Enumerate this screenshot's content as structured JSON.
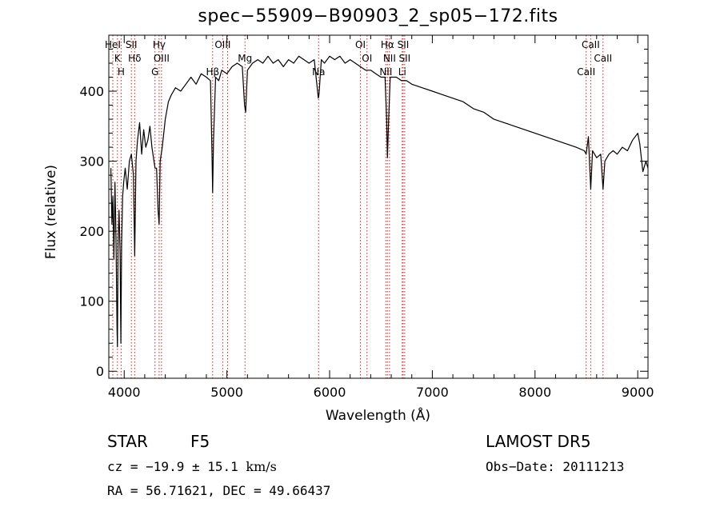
{
  "title": "spec−55909−B90903_2_sp05−172.fits",
  "info": {
    "class_label": "STAR",
    "subclass": "F5",
    "survey": "LAMOST  DR5",
    "cz_prefix": "cz = −19.9 ± 15.1 ",
    "cz_unit": "km/s",
    "obs_date": "Obs−Date: 20111213",
    "radec": "RA =  56.71621, DEC =  49.66437"
  },
  "chart_data": {
    "type": "line",
    "title": "spec−55909−B90903_2_sp05−172.fits",
    "xlabel": "Wavelength (Å)",
    "ylabel": "Flux (relative)",
    "xlim": [
      3850,
      9100
    ],
    "ylim": [
      -10,
      480
    ],
    "xticks": [
      4000,
      5000,
      6000,
      7000,
      8000,
      9000
    ],
    "yticks": [
      0,
      100,
      200,
      300,
      400
    ],
    "line_color": "#000000",
    "marker_color": "#cc2222",
    "series": [
      {
        "points": [
          [
            3870,
            290
          ],
          [
            3880,
            210
          ],
          [
            3890,
            250
          ],
          [
            3900,
            160
          ],
          [
            3910,
            270
          ],
          [
            3920,
            190
          ],
          [
            3930,
            60
          ],
          [
            3934,
            35
          ],
          [
            3940,
            180
          ],
          [
            3950,
            230
          ],
          [
            3960,
            170
          ],
          [
            3968,
            40
          ],
          [
            3975,
            180
          ],
          [
            3985,
            250
          ],
          [
            3995,
            270
          ],
          [
            4010,
            290
          ],
          [
            4030,
            260
          ],
          [
            4050,
            300
          ],
          [
            4070,
            310
          ],
          [
            4090,
            280
          ],
          [
            4102,
            165
          ],
          [
            4115,
            300
          ],
          [
            4130,
            330
          ],
          [
            4150,
            355
          ],
          [
            4170,
            310
          ],
          [
            4190,
            345
          ],
          [
            4210,
            320
          ],
          [
            4230,
            330
          ],
          [
            4250,
            350
          ],
          [
            4270,
            320
          ],
          [
            4290,
            300
          ],
          [
            4300,
            290
          ],
          [
            4315,
            290
          ],
          [
            4330,
            230
          ],
          [
            4340,
            210
          ],
          [
            4350,
            300
          ],
          [
            4370,
            320
          ],
          [
            4400,
            360
          ],
          [
            4430,
            385
          ],
          [
            4460,
            395
          ],
          [
            4500,
            405
          ],
          [
            4550,
            400
          ],
          [
            4600,
            410
          ],
          [
            4650,
            420
          ],
          [
            4700,
            410
          ],
          [
            4750,
            425
          ],
          [
            4800,
            420
          ],
          [
            4840,
            415
          ],
          [
            4855,
            310
          ],
          [
            4861,
            255
          ],
          [
            4870,
            330
          ],
          [
            4890,
            420
          ],
          [
            4920,
            415
          ],
          [
            4950,
            430
          ],
          [
            5000,
            425
          ],
          [
            5050,
            435
          ],
          [
            5100,
            440
          ],
          [
            5150,
            435
          ],
          [
            5172,
            380
          ],
          [
            5183,
            370
          ],
          [
            5200,
            430
          ],
          [
            5250,
            440
          ],
          [
            5300,
            445
          ],
          [
            5350,
            440
          ],
          [
            5400,
            450
          ],
          [
            5450,
            440
          ],
          [
            5500,
            445
          ],
          [
            5550,
            435
          ],
          [
            5600,
            445
          ],
          [
            5650,
            440
          ],
          [
            5700,
            450
          ],
          [
            5750,
            445
          ],
          [
            5800,
            440
          ],
          [
            5850,
            445
          ],
          [
            5890,
            390
          ],
          [
            5896,
            395
          ],
          [
            5920,
            445
          ],
          [
            5950,
            440
          ],
          [
            6000,
            450
          ],
          [
            6050,
            445
          ],
          [
            6100,
            450
          ],
          [
            6150,
            440
          ],
          [
            6200,
            445
          ],
          [
            6250,
            440
          ],
          [
            6300,
            435
          ],
          [
            6350,
            430
          ],
          [
            6400,
            430
          ],
          [
            6450,
            425
          ],
          [
            6500,
            420
          ],
          [
            6540,
            420
          ],
          [
            6555,
            360
          ],
          [
            6563,
            305
          ],
          [
            6575,
            360
          ],
          [
            6590,
            420
          ],
          [
            6650,
            420
          ],
          [
            6700,
            415
          ],
          [
            6750,
            415
          ],
          [
            6800,
            410
          ],
          [
            6900,
            405
          ],
          [
            7000,
            400
          ],
          [
            7100,
            395
          ],
          [
            7200,
            390
          ],
          [
            7300,
            385
          ],
          [
            7400,
            375
          ],
          [
            7500,
            370
          ],
          [
            7600,
            360
          ],
          [
            7700,
            355
          ],
          [
            7800,
            350
          ],
          [
            7900,
            345
          ],
          [
            8000,
            340
          ],
          [
            8100,
            335
          ],
          [
            8200,
            330
          ],
          [
            8300,
            325
          ],
          [
            8400,
            320
          ],
          [
            8480,
            315
          ],
          [
            8498,
            310
          ],
          [
            8520,
            335
          ],
          [
            8542,
            260
          ],
          [
            8560,
            315
          ],
          [
            8600,
            305
          ],
          [
            8640,
            310
          ],
          [
            8662,
            260
          ],
          [
            8680,
            300
          ],
          [
            8720,
            310
          ],
          [
            8760,
            315
          ],
          [
            8800,
            310
          ],
          [
            8850,
            320
          ],
          [
            8900,
            315
          ],
          [
            8950,
            330
          ],
          [
            9000,
            340
          ],
          [
            9020,
            325
          ],
          [
            9050,
            285
          ],
          [
            9080,
            300
          ],
          [
            9100,
            290
          ]
        ]
      }
    ],
    "line_markers": [
      {
        "wavelength": 3889,
        "labels": [
          "HeI"
        ]
      },
      {
        "wavelength": 3934,
        "labels": [
          "K"
        ]
      },
      {
        "wavelength": 3970,
        "labels": [
          "H"
        ]
      },
      {
        "wavelength": 4070,
        "labels": [
          "SII"
        ]
      },
      {
        "wavelength": 4102,
        "labels": [
          "Hδ"
        ]
      },
      {
        "wavelength": 4300,
        "labels": [
          "G"
        ]
      },
      {
        "wavelength": 4340,
        "labels": [
          "Hγ"
        ]
      },
      {
        "wavelength": 4363,
        "labels": [
          "OIII"
        ]
      },
      {
        "wavelength": 4861,
        "labels": [
          "Hβ"
        ]
      },
      {
        "wavelength": 4959,
        "labels": [
          "OIII"
        ]
      },
      {
        "wavelength": 5007,
        "labels": []
      },
      {
        "wavelength": 5176,
        "labels": [
          "Mg"
        ]
      },
      {
        "wavelength": 5893,
        "labels": [
          "Na"
        ]
      },
      {
        "wavelength": 6300,
        "labels": [
          "OI"
        ]
      },
      {
        "wavelength": 6364,
        "labels": [
          "OI"
        ]
      },
      {
        "wavelength": 6548,
        "labels": [
          "NII"
        ]
      },
      {
        "wavelength": 6563,
        "labels": [
          "Hα"
        ]
      },
      {
        "wavelength": 6583,
        "labels": [
          "NII"
        ]
      },
      {
        "wavelength": 6707,
        "labels": [
          "Li"
        ]
      },
      {
        "wavelength": 6716,
        "labels": [
          "SII"
        ]
      },
      {
        "wavelength": 6731,
        "labels": [
          "SII"
        ]
      },
      {
        "wavelength": 8498,
        "labels": [
          "CaII"
        ]
      },
      {
        "wavelength": 8542,
        "labels": [
          "CaII"
        ]
      },
      {
        "wavelength": 8662,
        "labels": [
          "CaII"
        ]
      }
    ]
  }
}
